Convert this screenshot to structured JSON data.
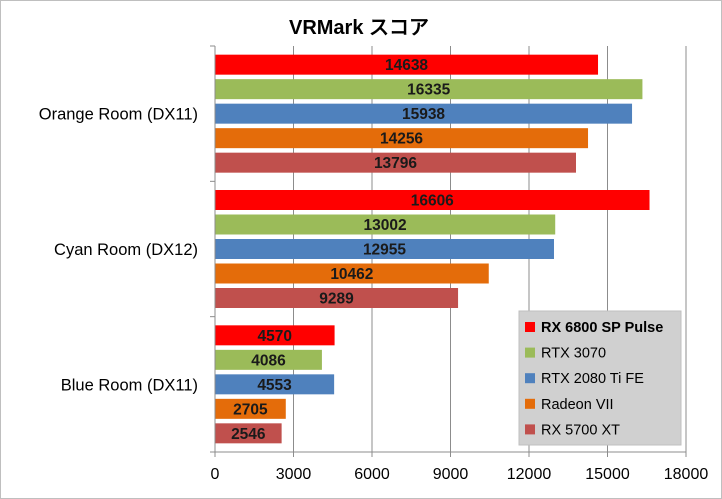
{
  "chart_data": {
    "type": "bar",
    "orientation": "horizontal",
    "title": "VRMark スコア",
    "xlabel": "",
    "ylabel": "",
    "xlim": [
      0,
      18000
    ],
    "xticks": [
      "0",
      "3000",
      "6000",
      "9000",
      "12000",
      "15000",
      "18000"
    ],
    "grid": "vertical",
    "legend_position": "bottom-right",
    "categories": [
      "Orange Room (DX11)",
      "Cyan Room (DX12)",
      "Blue Room (DX11)"
    ],
    "series": [
      {
        "name": "RX 6800 SP Pulse",
        "color": "#ff0000",
        "bold_legend": true,
        "values": [
          14638,
          16606,
          4570
        ]
      },
      {
        "name": "RTX 3070",
        "color": "#9bbb59",
        "bold_legend": false,
        "values": [
          16335,
          13002,
          4086
        ]
      },
      {
        "name": "RTX 2080 Ti FE",
        "color": "#4f81bd",
        "bold_legend": false,
        "values": [
          15938,
          12955,
          4553
        ]
      },
      {
        "name": "Radeon VII",
        "color": "#e46c0a",
        "bold_legend": false,
        "values": [
          14256,
          10462,
          2705
        ]
      },
      {
        "name": "RX 5700 XT",
        "color": "#c0504d",
        "bold_legend": false,
        "values": [
          13796,
          9289,
          2546
        ]
      }
    ]
  }
}
